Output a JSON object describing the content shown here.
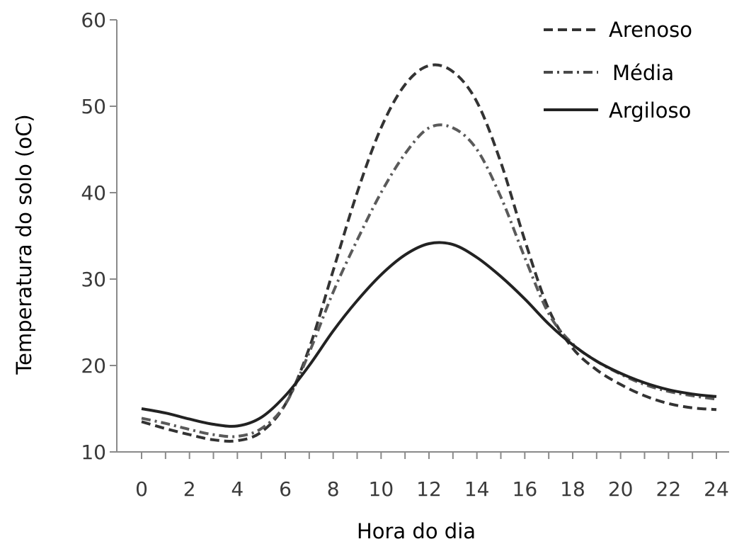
{
  "chart_data": {
    "type": "line",
    "title": "",
    "xlabel": "Hora do dia",
    "ylabel": "Temperatura do solo (oC)",
    "xlim": [
      0,
      24
    ],
    "ylim": [
      10,
      60
    ],
    "x_ticks": [
      "0",
      "2",
      "4",
      "6",
      "8",
      "10",
      "12",
      "14",
      "16",
      "18",
      "20",
      "22",
      "24"
    ],
    "y_ticks": [
      "10",
      "20",
      "30",
      "40",
      "50",
      "60"
    ],
    "grid": false,
    "legend_position": "top-right",
    "x": [
      0,
      1,
      2,
      3,
      4,
      5,
      6,
      7,
      8,
      9,
      10,
      11,
      12,
      13,
      14,
      15,
      16,
      17,
      18,
      19,
      20,
      21,
      22,
      23,
      24
    ],
    "series": [
      {
        "name": "Arenoso",
        "style": "dashed",
        "values": [
          13.5,
          12.7,
          12.0,
          11.4,
          11.3,
          12.3,
          15.5,
          22.0,
          31.0,
          40.0,
          47.5,
          52.5,
          54.7,
          54.0,
          50.5,
          43.5,
          34.5,
          26.5,
          22.0,
          19.5,
          17.8,
          16.5,
          15.6,
          15.1,
          14.9
        ]
      },
      {
        "name": "Média",
        "style": "dash-dot",
        "values": [
          13.9,
          13.3,
          12.6,
          12.0,
          11.8,
          12.7,
          15.5,
          21.5,
          28.5,
          34.5,
          40.0,
          44.5,
          47.5,
          47.5,
          45.0,
          39.5,
          32.5,
          26.0,
          22.5,
          20.5,
          19.0,
          17.8,
          17.0,
          16.5,
          16.1
        ]
      },
      {
        "name": "Argiloso",
        "style": "solid",
        "values": [
          15.0,
          14.5,
          13.8,
          13.2,
          13.0,
          14.0,
          16.5,
          20.0,
          24.0,
          27.5,
          30.5,
          32.8,
          34.1,
          34.0,
          32.5,
          30.3,
          27.7,
          24.8,
          22.4,
          20.5,
          19.1,
          18.0,
          17.2,
          16.7,
          16.4
        ]
      }
    ]
  }
}
